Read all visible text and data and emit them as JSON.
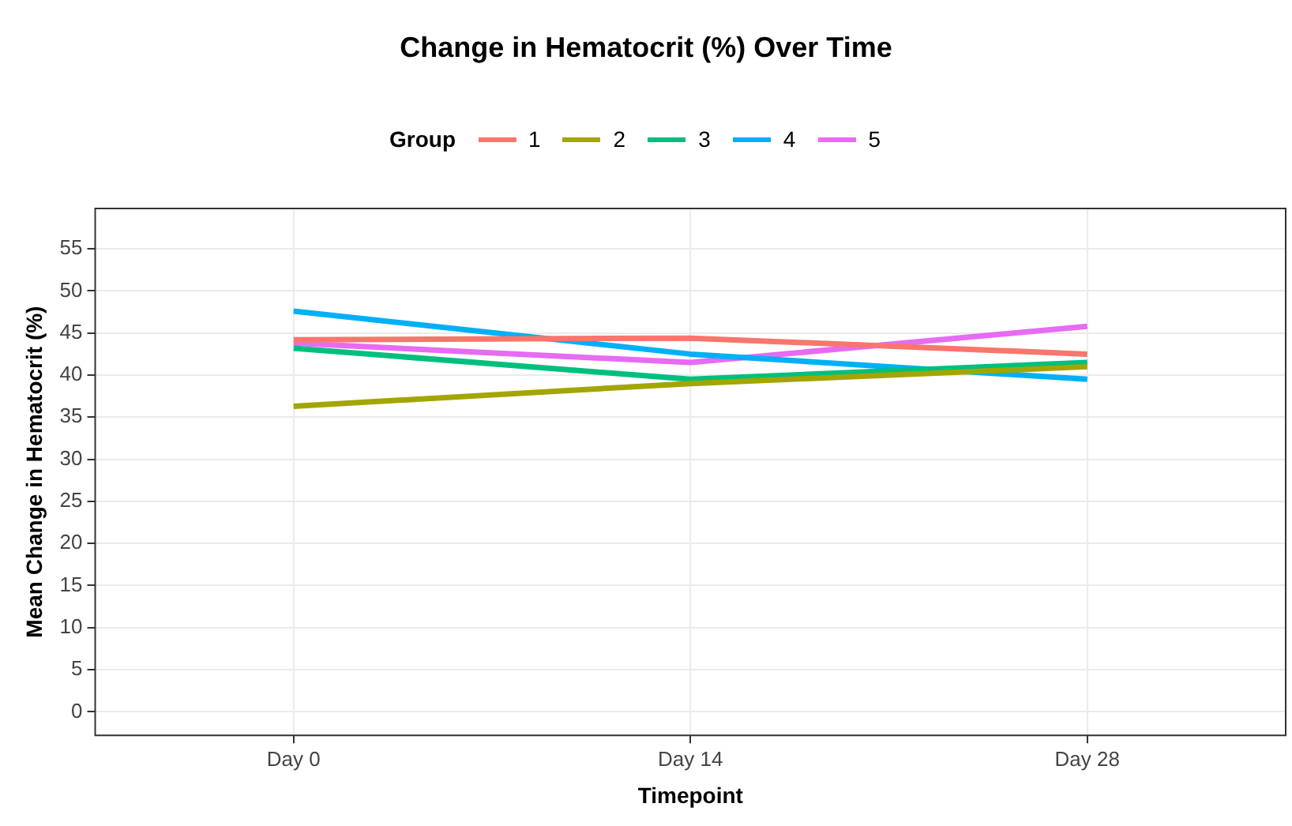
{
  "chart_data": {
    "type": "line",
    "title": "Change in Hematocrit (%) Over Time",
    "xlabel": "Timepoint",
    "ylabel": "Mean Change in Hematocrit (%)",
    "legend_title": "Group",
    "legend": "top",
    "grid": true,
    "line_style": "solid",
    "marker": "none",
    "categories": [
      "Day 0",
      "Day 14",
      "Day 28"
    ],
    "ylim": [
      -2.8,
      59.8
    ],
    "yticks": [
      0,
      5,
      10,
      15,
      20,
      25,
      30,
      35,
      40,
      45,
      50,
      55
    ],
    "series": [
      {
        "name": "1",
        "color": "#f8766d",
        "values": [
          44.2,
          44.4,
          42.5
        ]
      },
      {
        "name": "2",
        "color": "#a3a500",
        "values": [
          36.3,
          39.0,
          41.0
        ]
      },
      {
        "name": "3",
        "color": "#00bf7d",
        "values": [
          43.2,
          39.5,
          41.5
        ]
      },
      {
        "name": "4",
        "color": "#00b0f6",
        "values": [
          47.6,
          42.5,
          39.5
        ]
      },
      {
        "name": "5",
        "color": "#e76bf3",
        "values": [
          43.8,
          41.5,
          45.8
        ]
      }
    ]
  }
}
